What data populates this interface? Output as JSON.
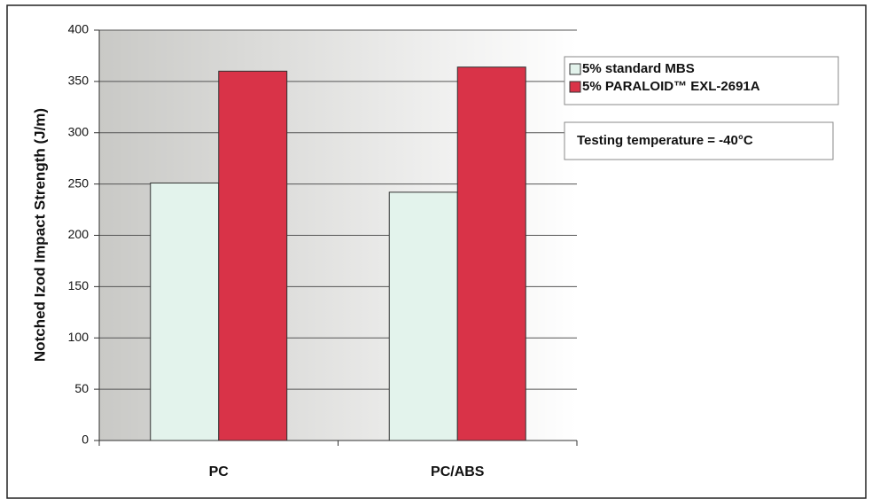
{
  "chart_data": {
    "type": "bar",
    "y_label": "Notched Izod Impact Strength (J/m)",
    "categories": [
      "PC",
      "PC/ABS"
    ],
    "series": [
      {
        "name": "5% standard MBS",
        "color": "#e3f3ec",
        "values": [
          251,
          242
        ]
      },
      {
        "name": "5% PARALOID™ EXL-2691A",
        "color": "#d93348",
        "values": [
          360,
          364
        ]
      }
    ],
    "ylim": [
      0,
      400
    ],
    "yticks": [
      0,
      50,
      100,
      150,
      200,
      250,
      300,
      350,
      400
    ],
    "grid": true,
    "legend": "upper right",
    "annotation": "Testing temperature = -40°C"
  }
}
